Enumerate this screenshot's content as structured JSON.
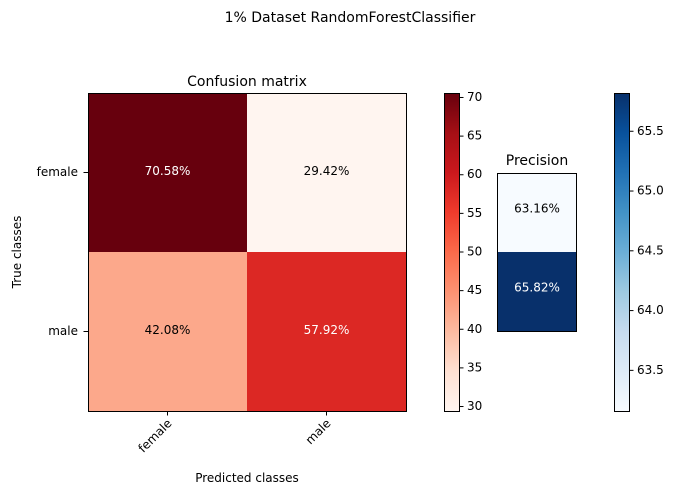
{
  "chart_data": {
    "type": "heatmap",
    "suptitle": "1% Dataset RandomForestClassifier",
    "confusion": {
      "title": "Confusion matrix",
      "xlabel": "Predicted classes",
      "ylabel": "True classes",
      "x_categories": [
        "female",
        "male"
      ],
      "y_categories": [
        "female",
        "male"
      ],
      "values": [
        [
          70.58,
          29.42
        ],
        [
          42.08,
          57.92
        ]
      ],
      "labels": [
        [
          "70.58%",
          "29.42%"
        ],
        [
          "42.08%",
          "57.92%"
        ]
      ],
      "colormap": "Reds",
      "vmin": 29.42,
      "vmax": 70.58
    },
    "confusion_colorbar": {
      "ticks": [
        "30",
        "35",
        "40",
        "45",
        "50",
        "55",
        "60",
        "65",
        "70"
      ],
      "tick_values": [
        30,
        35,
        40,
        45,
        50,
        55,
        60,
        65,
        70
      ],
      "range": [
        29.42,
        70.58
      ]
    },
    "precision": {
      "title": "Precision",
      "values": [
        63.16,
        65.82
      ],
      "labels": [
        "63.16%",
        "65.82%"
      ],
      "colormap": "Blues",
      "vmin": 63.16,
      "vmax": 65.82
    },
    "precision_colorbar": {
      "ticks": [
        "63.5",
        "64.0",
        "64.5",
        "65.0",
        "65.5"
      ],
      "tick_values": [
        63.5,
        64.0,
        64.5,
        65.0,
        65.5
      ],
      "range": [
        63.16,
        65.82
      ]
    }
  }
}
